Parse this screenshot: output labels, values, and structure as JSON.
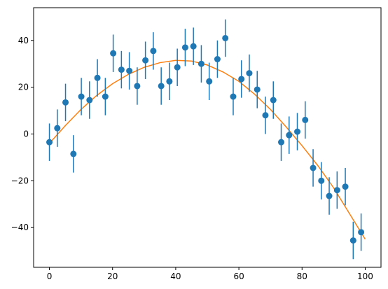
{
  "chart_data": {
    "type": "scatter",
    "title": "",
    "xlabel": "",
    "ylabel": "",
    "xlim": [
      -5,
      105
    ],
    "ylim": [
      -57,
      54
    ],
    "xticks": [
      0,
      20,
      40,
      60,
      80,
      100
    ],
    "yticks": [
      -40,
      -20,
      0,
      20,
      40
    ],
    "grid": false,
    "legend": "none",
    "colors": {
      "points": "#1f77b4",
      "errorbars": "#1f77b4",
      "fit": "#ff7f0e"
    },
    "error": 8,
    "series": [
      {
        "kind": "errorbar",
        "x": [
          0,
          2.5,
          5.1,
          7.6,
          10.1,
          12.7,
          15.2,
          17.7,
          20.2,
          22.8,
          25.3,
          27.8,
          30.4,
          32.9,
          35.4,
          38.0,
          40.5,
          43.0,
          45.6,
          48.1,
          50.6,
          53.2,
          55.7,
          58.2,
          60.8,
          63.3,
          65.8,
          68.4,
          70.9,
          73.4,
          75.9,
          78.5,
          81.0,
          83.5,
          86.1,
          88.6,
          91.1,
          93.7,
          96.2,
          98.7
        ],
        "y": [
          -3.5,
          2.5,
          13.5,
          -8.5,
          16,
          14.5,
          24,
          16,
          34.5,
          27.5,
          27,
          20.5,
          31.5,
          35.5,
          20.5,
          22.5,
          28.5,
          37,
          37.5,
          30,
          22.5,
          32,
          41,
          16,
          23.5,
          26,
          19,
          8,
          14.5,
          -3.5,
          -0.5,
          1,
          6,
          -14.5,
          -20,
          -26.5,
          -24,
          -22.5,
          -45.5,
          -42
        ]
      },
      {
        "kind": "line",
        "x": [
          0,
          5,
          10,
          15,
          20,
          25,
          30,
          35,
          40,
          45,
          50,
          55,
          60,
          65,
          70,
          75,
          80,
          85,
          90,
          95,
          100
        ],
        "y": [
          -4,
          3.5,
          10.5,
          16.5,
          21.5,
          25.5,
          28.5,
          30.5,
          31.5,
          31.2,
          29.5,
          26.5,
          22.5,
          17,
          10.5,
          3,
          -5,
          -13.5,
          -23,
          -34,
          -45
        ]
      }
    ]
  }
}
